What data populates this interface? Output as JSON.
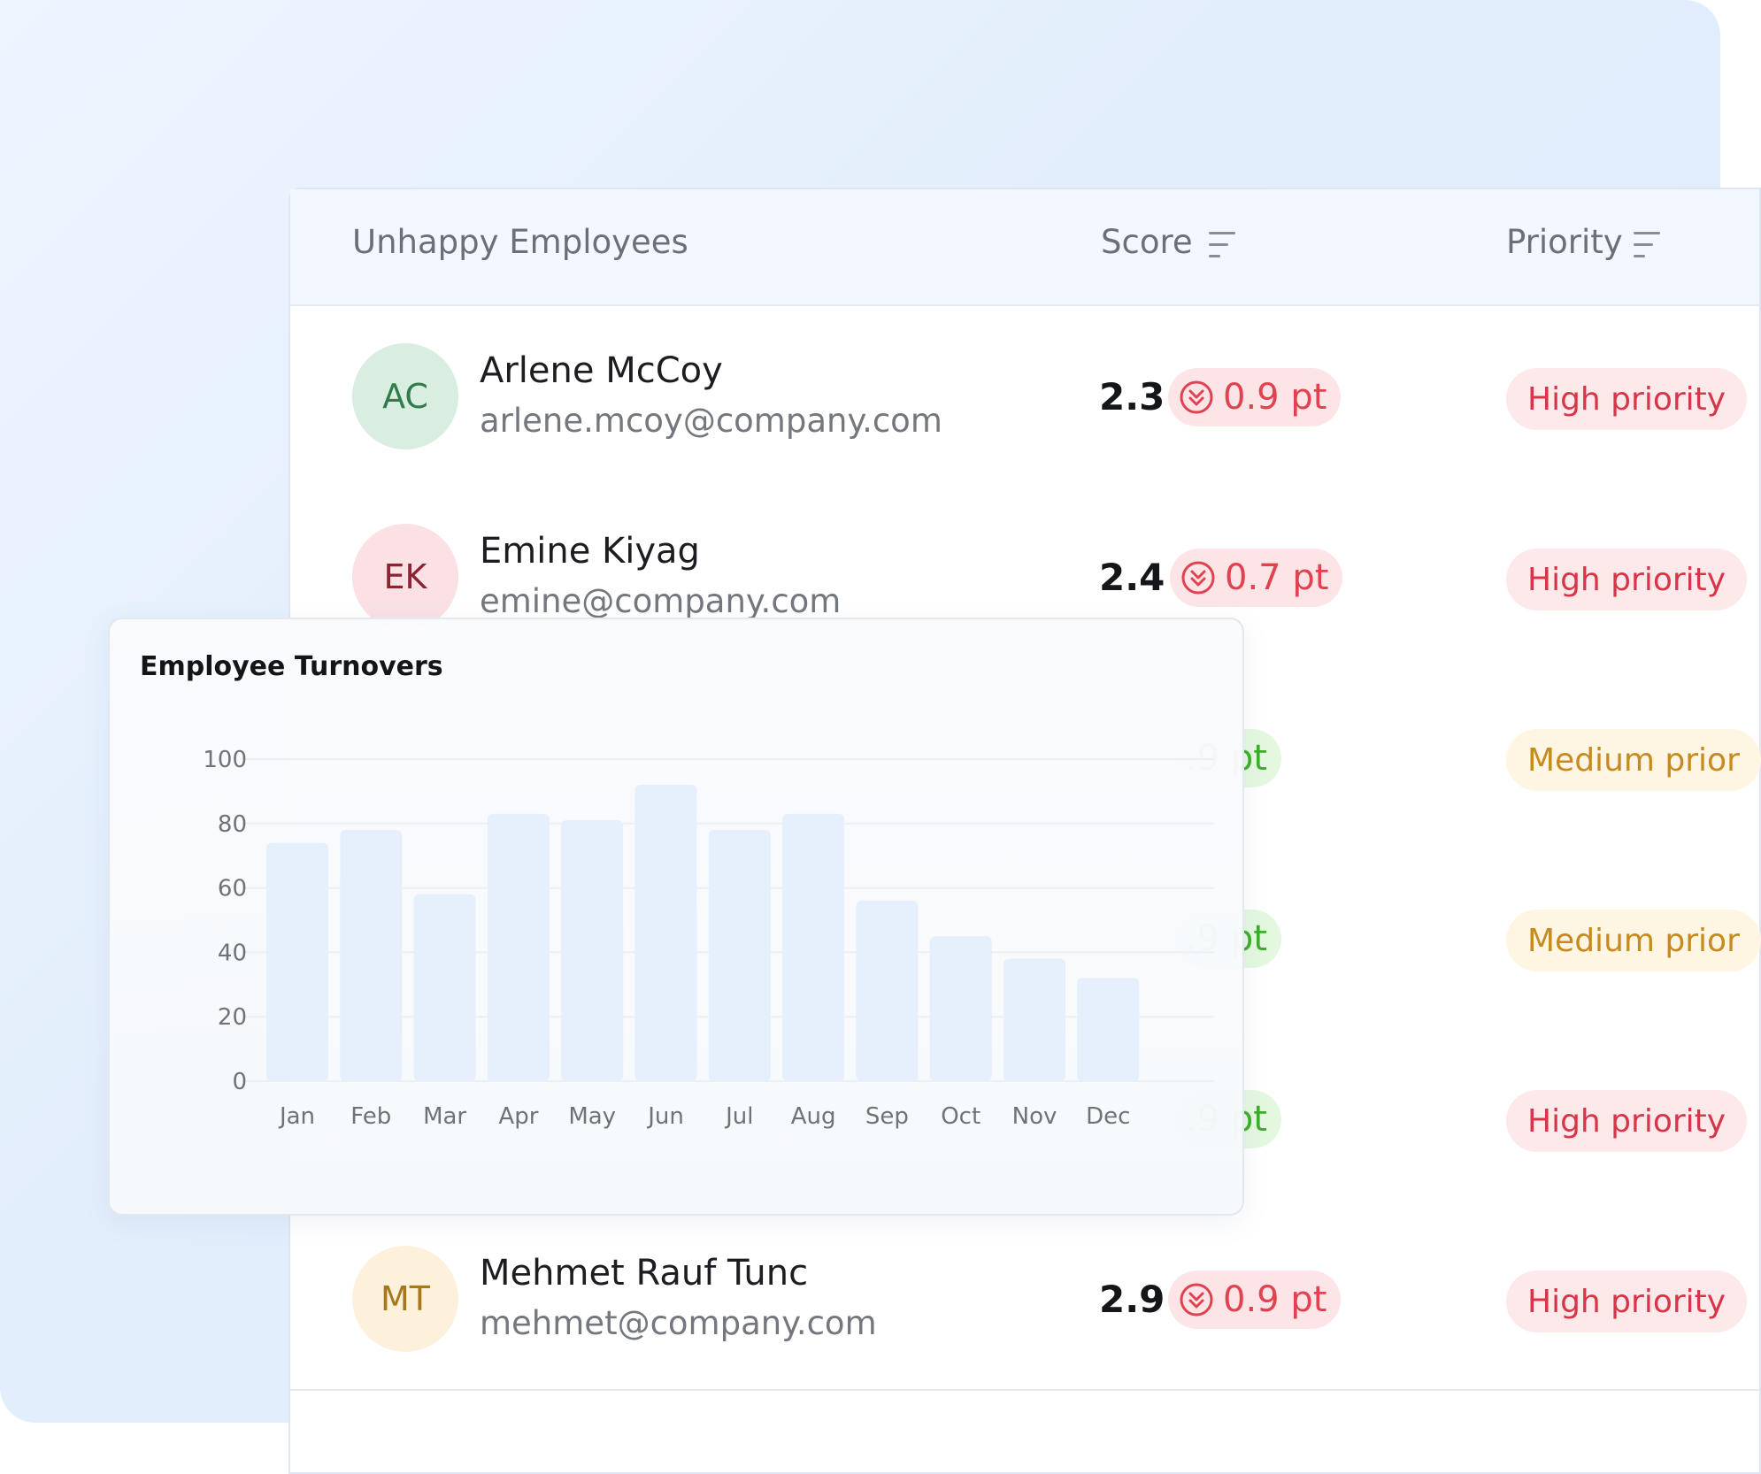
{
  "table": {
    "title": "Unhappy Employees",
    "score_label": "Score",
    "priority_label": "Priority",
    "rows": [
      {
        "initials": "AC",
        "name": "Arlene McCoy",
        "email": "arlene.mcoy@company.com",
        "score": "2.3",
        "delta": "0.9 pt",
        "delta_direction": "down",
        "priority": "High priority",
        "level": "high",
        "avatar_bg": "#d9ede0",
        "avatar_fg": "#2f7d4a"
      },
      {
        "initials": "EK",
        "name": "Emine Kiyag",
        "email": "emine@company.com",
        "score": "2.4",
        "delta": "0.7 pt",
        "delta_direction": "down",
        "priority": "High priority",
        "level": "high",
        "avatar_bg": "#fbe1e4",
        "avatar_fg": "#8a2430"
      },
      {
        "delta": ".9 pt",
        "delta_direction": "up",
        "priority": "Medium prior",
        "level": "medium"
      },
      {
        "delta": ".9 pt",
        "delta_direction": "up",
        "priority": "Medium prior",
        "level": "medium"
      },
      {
        "delta": ".9 pt",
        "delta_direction": "up",
        "priority": "High priority",
        "level": "high"
      },
      {
        "initials": "MT",
        "name": "Mehmet Rauf Tunc",
        "email": "mehmet@company.com",
        "score": "2.9",
        "delta": "0.9 pt",
        "delta_direction": "down",
        "priority": "High priority",
        "level": "high",
        "avatar_bg": "#fdf1dc",
        "avatar_fg": "#a6781c"
      }
    ]
  },
  "chart_data": {
    "type": "bar",
    "title": "Employee Turnovers",
    "categories": [
      "Jan",
      "Feb",
      "Mar",
      "Apr",
      "May",
      "Jun",
      "Jul",
      "Aug",
      "Sep",
      "Oct",
      "Nov",
      "Dec"
    ],
    "values": [
      74,
      78,
      58,
      83,
      81,
      92,
      78,
      83,
      56,
      45,
      38,
      32
    ],
    "ylim": [
      0,
      100
    ],
    "yticks": [
      0,
      20,
      40,
      60,
      80,
      100
    ],
    "grid": true,
    "bar_color": "#e6effc"
  },
  "colors": {
    "down": "#e0424f",
    "up": "#3cae2a",
    "high": "#d63648",
    "medium": "#c78a1f"
  },
  "icons": {
    "sort": "sort-lines-icon",
    "delta_down": "double-chevron-down-circle-icon"
  }
}
